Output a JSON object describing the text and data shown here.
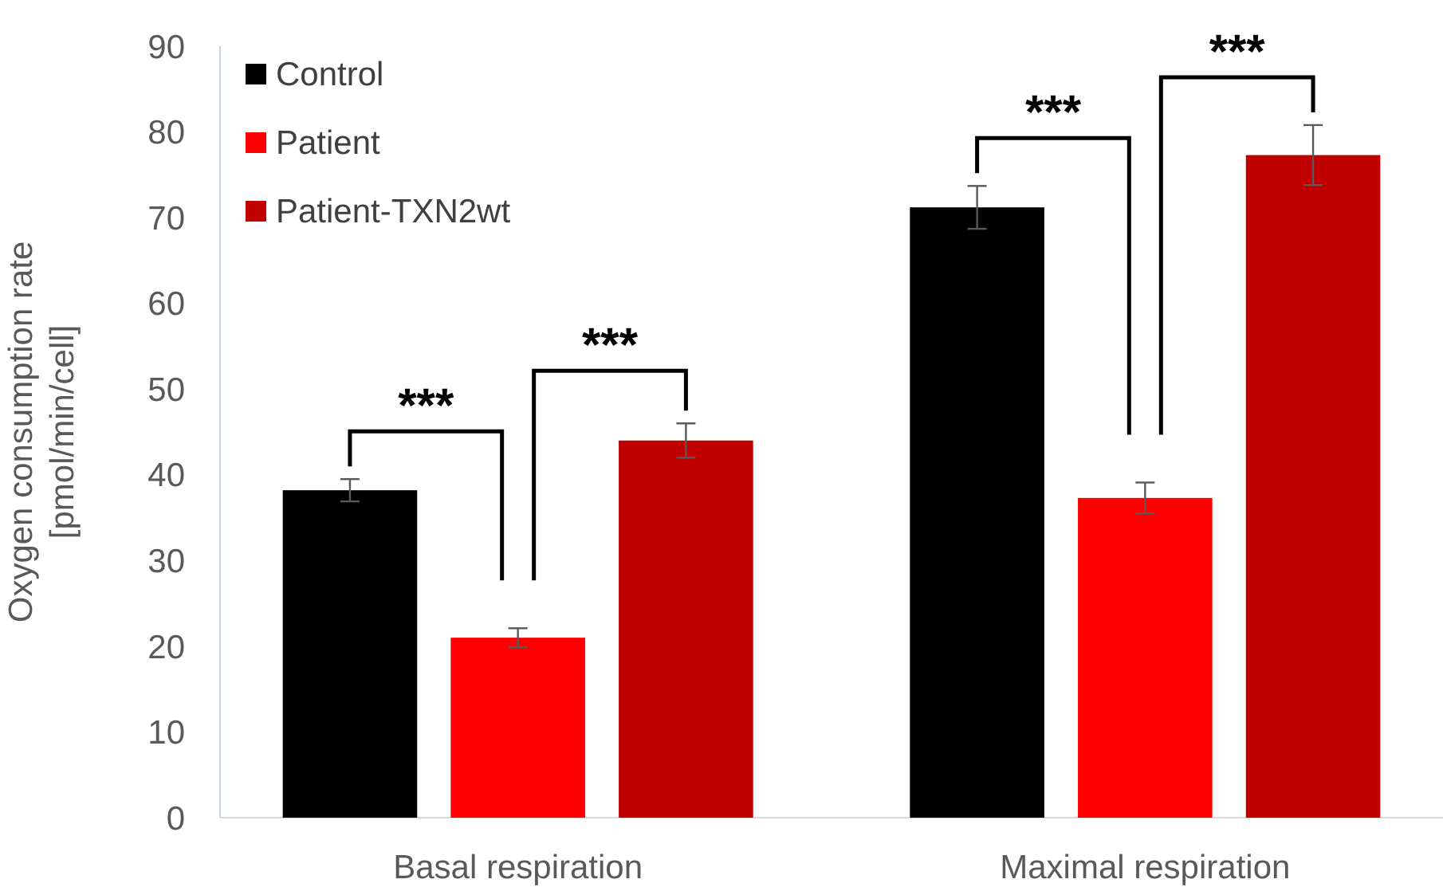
{
  "chart_data": {
    "type": "bar",
    "ylabel": "Oxygen consumption rate\n[pmol/min/cell]",
    "categories": [
      "Basal respiration",
      "Maximal respiration"
    ],
    "series": [
      {
        "name": "Control",
        "color": "#000000",
        "values": [
          38.2,
          71.2
        ],
        "errors": [
          1.3,
          2.5
        ]
      },
      {
        "name": "Patient",
        "color": "#ff0000",
        "values": [
          21.0,
          37.3
        ],
        "errors": [
          1.1,
          1.8
        ]
      },
      {
        "name": "Patient-TXN2wt",
        "color": "#c00000",
        "values": [
          44.0,
          77.3
        ],
        "errors": [
          2.0,
          3.5
        ]
      }
    ],
    "ylim": [
      0,
      90
    ],
    "yticks": [
      0,
      10,
      20,
      30,
      40,
      50,
      60,
      70,
      80,
      90
    ],
    "legend": "top left",
    "annotations": [
      "***",
      "***",
      "***",
      "***"
    ]
  }
}
